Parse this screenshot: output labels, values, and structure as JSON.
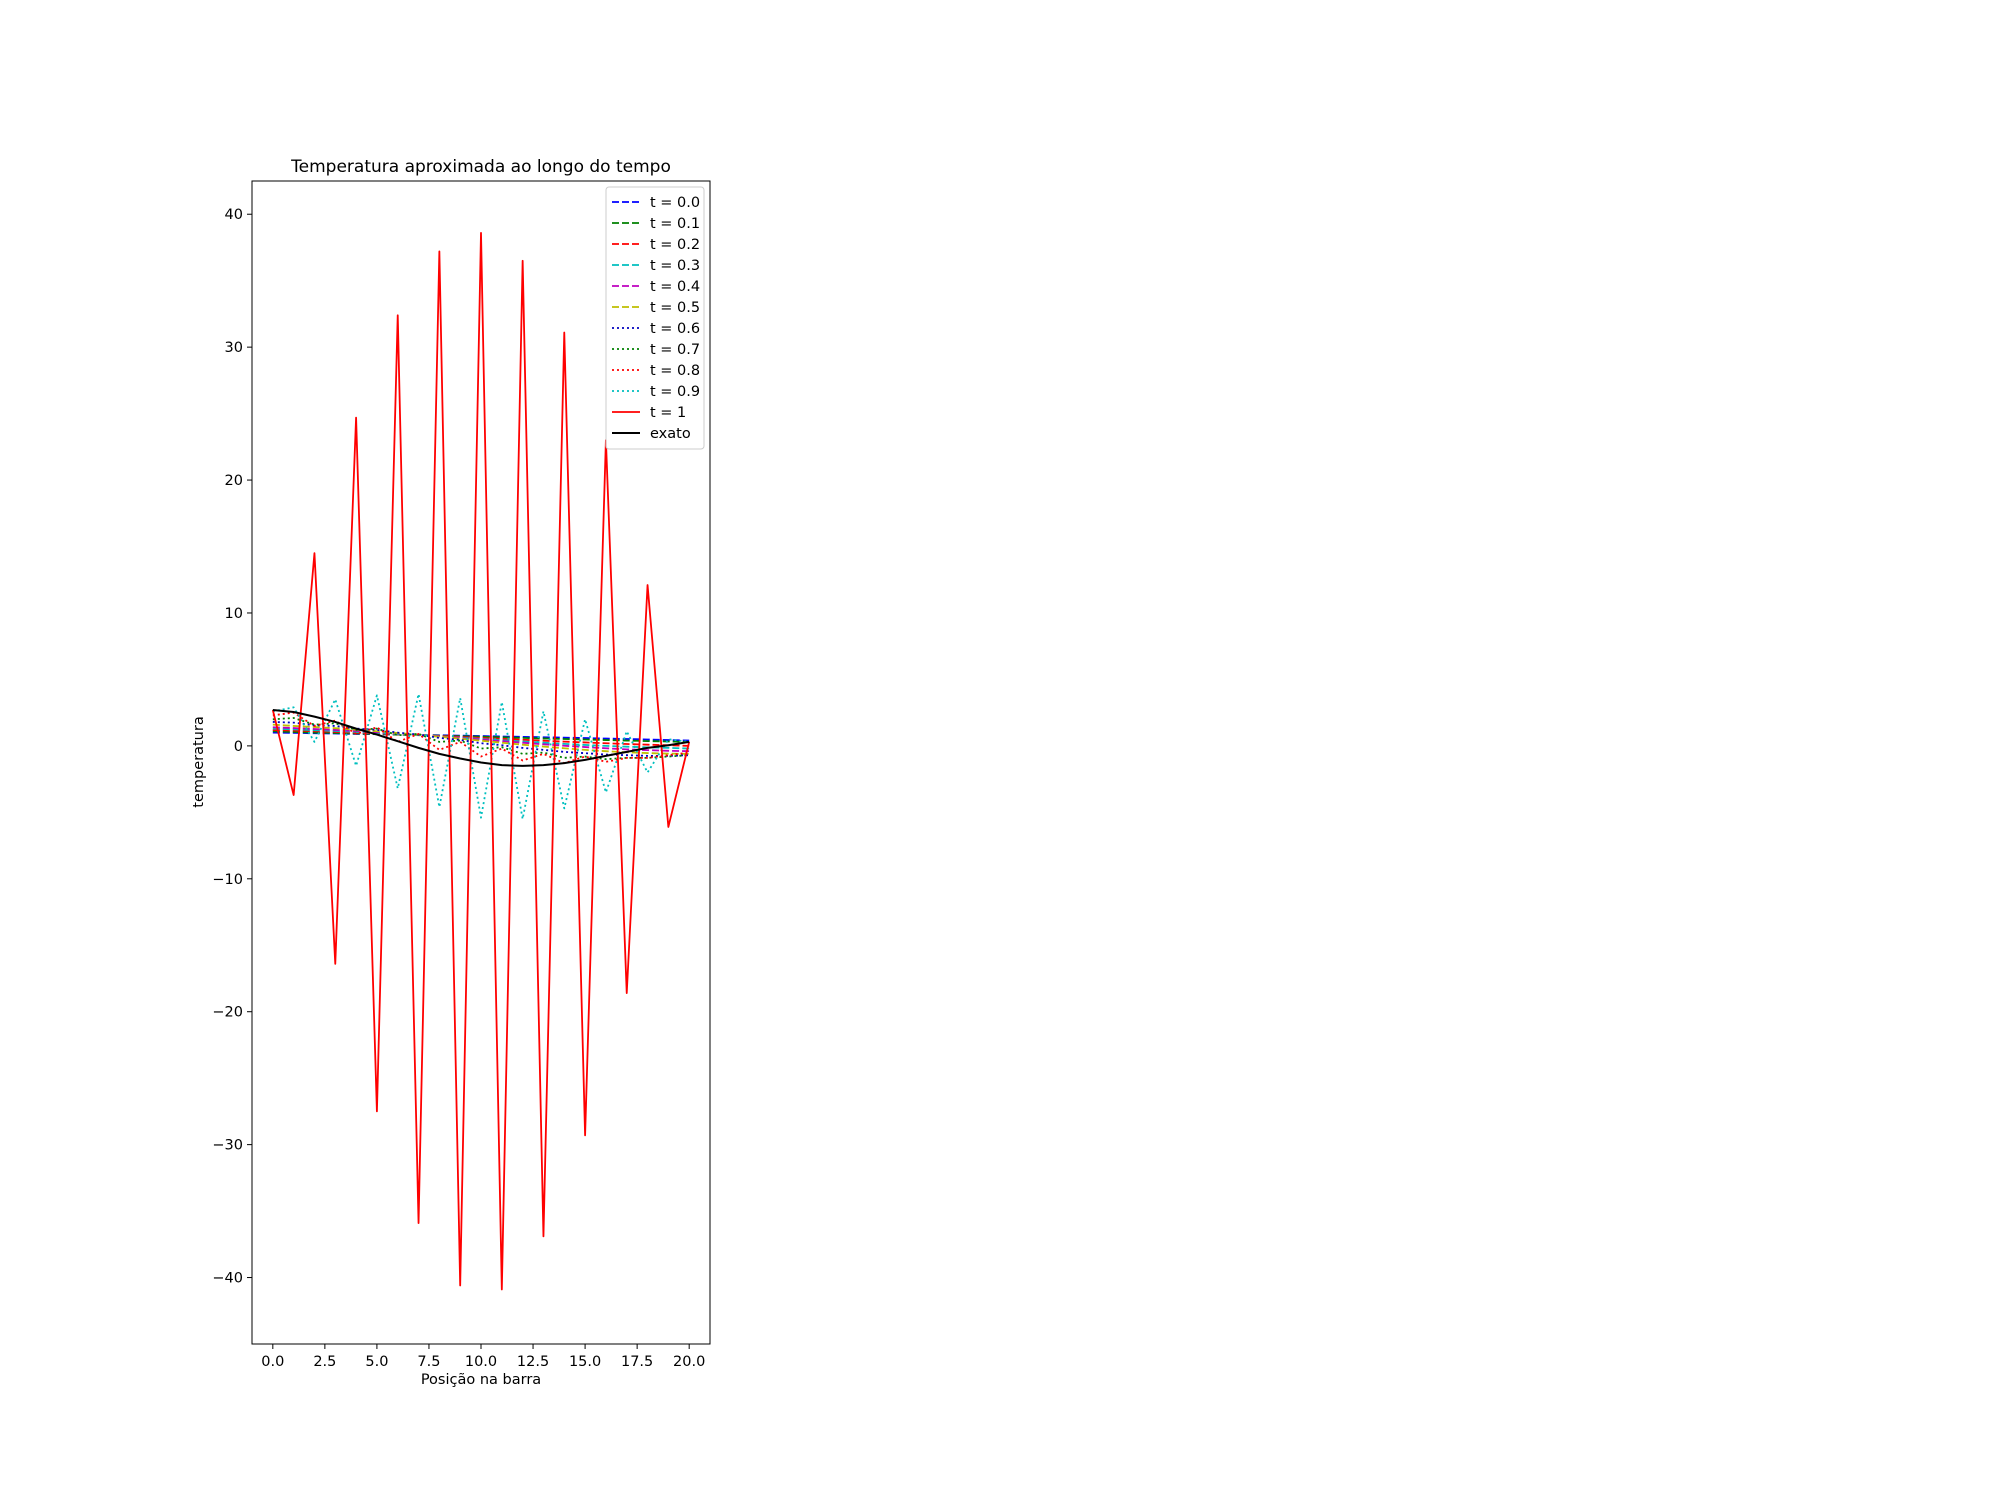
{
  "chart_data": {
    "type": "line",
    "title": "Temperatura aproximada ao longo do tempo",
    "xlabel": "Posição na barra",
    "ylabel": "temperatura",
    "xlim": [
      -1,
      21
    ],
    "ylim": [
      -45,
      42.5
    ],
    "xticks": [
      0,
      2.5,
      5,
      7.5,
      10,
      12.5,
      15,
      17.5,
      20
    ],
    "xtick_labels": [
      "0.0",
      "2.5",
      "5.0",
      "7.5",
      "10.0",
      "12.5",
      "15.0",
      "17.5",
      "20.0"
    ],
    "yticks": [
      -40,
      -30,
      -20,
      -10,
      0,
      10,
      20,
      30,
      40
    ],
    "ytick_labels": [
      "−40",
      "−30",
      "−20",
      "−10",
      "0",
      "10",
      "20",
      "30",
      "40"
    ],
    "grid": false,
    "legend_position": "top-right",
    "x": [
      0,
      1,
      2,
      3,
      4,
      5,
      6,
      7,
      8,
      9,
      10,
      11,
      12,
      13,
      14,
      15,
      16,
      17,
      18,
      19,
      20
    ],
    "series": [
      {
        "name": "t = 0.0",
        "color": "#0000ff",
        "dash": "dashed",
        "values": [
          1.0,
          0.98,
          0.95,
          0.93,
          0.9,
          0.88,
          0.85,
          0.82,
          0.8,
          0.77,
          0.74,
          0.71,
          0.68,
          0.65,
          0.62,
          0.59,
          0.55,
          0.52,
          0.48,
          0.44,
          0.4
        ]
      },
      {
        "name": "t = 0.1",
        "color": "#008000",
        "dash": "dashed",
        "values": [
          1.1,
          1.05,
          1.0,
          0.97,
          0.93,
          0.89,
          0.85,
          0.81,
          0.77,
          0.73,
          0.69,
          0.65,
          0.6,
          0.56,
          0.52,
          0.48,
          0.44,
          0.4,
          0.36,
          0.33,
          0.3
        ]
      },
      {
        "name": "t = 0.2",
        "color": "#ff0000",
        "dash": "dashed",
        "values": [
          1.2,
          1.15,
          1.1,
          1.05,
          0.99,
          0.93,
          0.87,
          0.81,
          0.74,
          0.67,
          0.6,
          0.53,
          0.46,
          0.39,
          0.32,
          0.26,
          0.2,
          0.14,
          0.09,
          0.05,
          0.0
        ]
      },
      {
        "name": "t = 0.3",
        "color": "#00bfbf",
        "dash": "dashed",
        "values": [
          1.3,
          1.24,
          1.18,
          1.12,
          1.05,
          0.97,
          0.89,
          0.8,
          0.71,
          0.62,
          0.52,
          0.42,
          0.33,
          0.24,
          0.15,
          0.07,
          0.0,
          -0.06,
          -0.11,
          -0.15,
          -0.2
        ]
      },
      {
        "name": "t = 0.4",
        "color": "#bf00bf",
        "dash": "dashed",
        "values": [
          1.4,
          1.34,
          1.27,
          1.2,
          1.12,
          1.03,
          0.93,
          0.83,
          0.72,
          0.6,
          0.48,
          0.36,
          0.24,
          0.12,
          0.01,
          -0.09,
          -0.18,
          -0.26,
          -0.32,
          -0.37,
          -0.4
        ]
      },
      {
        "name": "t = 0.5",
        "color": "#bfbf00",
        "dash": "dashed",
        "values": [
          1.6,
          1.5,
          1.42,
          1.33,
          1.22,
          1.1,
          0.97,
          0.83,
          0.69,
          0.54,
          0.39,
          0.24,
          0.09,
          -0.05,
          -0.18,
          -0.3,
          -0.4,
          -0.48,
          -0.54,
          -0.58,
          -0.6
        ]
      },
      {
        "name": "t = 0.6",
        "color": "#0000bf",
        "dash": "dotted",
        "values": [
          1.8,
          1.75,
          1.55,
          1.5,
          1.3,
          1.2,
          1.0,
          0.85,
          0.6,
          0.45,
          0.2,
          0.05,
          -0.15,
          -0.3,
          -0.45,
          -0.55,
          -0.65,
          -0.7,
          -0.75,
          -0.75,
          -0.7
        ]
      },
      {
        "name": "t = 0.7",
        "color": "#008000",
        "dash": "dotted",
        "values": [
          2.0,
          2.1,
          1.6,
          1.7,
          1.2,
          1.3,
          0.8,
          0.9,
          0.3,
          0.4,
          -0.2,
          -0.1,
          -0.6,
          -0.5,
          -0.9,
          -0.8,
          -1.0,
          -0.9,
          -0.9,
          -0.8,
          -0.7
        ]
      },
      {
        "name": "t = 0.8",
        "color": "#ff0000",
        "dash": "dotted",
        "values": [
          2.3,
          2.5,
          1.5,
          1.9,
          0.9,
          1.4,
          0.3,
          0.9,
          -0.3,
          0.3,
          -0.8,
          -0.2,
          -1.1,
          -0.6,
          -1.3,
          -0.8,
          -1.2,
          -0.9,
          -0.9,
          -0.7,
          -0.5
        ]
      },
      {
        "name": "t = 0.9",
        "color": "#00bfbf",
        "dash": "dotted",
        "values": [
          2.6,
          2.9,
          0.3,
          3.5,
          -1.5,
          3.8,
          -3.2,
          3.9,
          -4.6,
          3.6,
          -5.4,
          3.3,
          -5.5,
          2.6,
          -4.7,
          2.0,
          -3.5,
          1.1,
          -2.0,
          0.5,
          0.3
        ]
      },
      {
        "name": "t = 1",
        "color": "#ff0000",
        "dash": "solid",
        "values": [
          2.7,
          -3.7,
          14.5,
          -16.4,
          24.7,
          -27.5,
          32.4,
          -35.9,
          37.2,
          -40.6,
          38.6,
          -40.9,
          36.5,
          -36.9,
          31.1,
          -29.3,
          23.0,
          -18.6,
          12.1,
          -6.1,
          0.3
        ]
      },
      {
        "name": "exato",
        "color": "#000000",
        "dash": "solid",
        "values": [
          2.7,
          2.55,
          2.2,
          1.8,
          1.3,
          0.85,
          0.35,
          -0.15,
          -0.6,
          -0.95,
          -1.25,
          -1.45,
          -1.5,
          -1.45,
          -1.3,
          -1.05,
          -0.75,
          -0.45,
          -0.15,
          0.05,
          0.3
        ]
      }
    ]
  }
}
